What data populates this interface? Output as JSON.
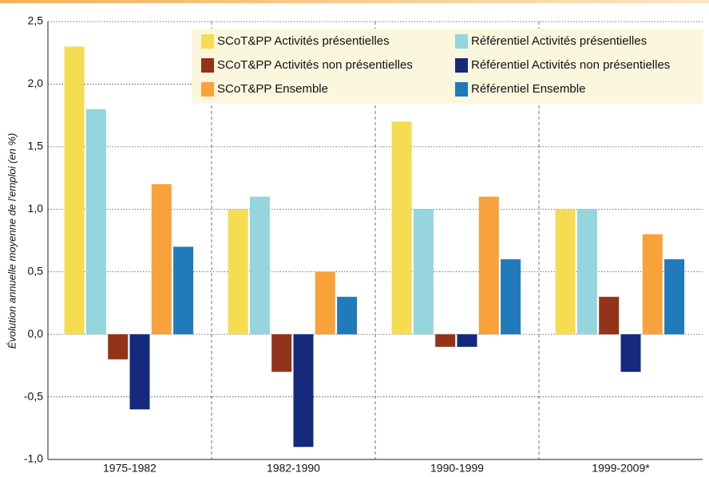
{
  "chart_data": {
    "type": "bar",
    "y_label": "Évolution annuelle moyenne de l'emploi (en %)",
    "categories": [
      "1975-1982",
      "1982-1990",
      "1990-1999",
      "1999-2009*"
    ],
    "series": [
      {
        "name": "SCoT&PP Activités présentielles",
        "color": "#f5dc50",
        "values": [
          2.3,
          1.0,
          1.7,
          1.0
        ]
      },
      {
        "name": "Référentiel Activités présentielles",
        "color": "#95d5dd",
        "values": [
          1.8,
          1.1,
          1.0,
          1.0
        ]
      },
      {
        "name": "SCoT&PP Activités non présentielles",
        "color": "#933319",
        "values": [
          -0.2,
          -0.3,
          -0.1,
          0.3
        ]
      },
      {
        "name": "Référentiel Activités non présentielles",
        "color": "#152a7c",
        "values": [
          -0.6,
          -0.9,
          -0.1,
          -0.3
        ]
      },
      {
        "name": "SCoT&PP Ensemble",
        "color": "#f9a13a",
        "values": [
          1.2,
          0.5,
          1.1,
          0.8
        ]
      },
      {
        "name": "Référentiel Ensemble",
        "color": "#217ab9",
        "values": [
          0.7,
          0.3,
          0.6,
          0.6
        ]
      }
    ],
    "ylim": [
      -1.0,
      2.5
    ],
    "yticks": [
      {
        "value": -1.0,
        "label": "-1,0"
      },
      {
        "value": -0.5,
        "label": "-0,5"
      },
      {
        "value": 0.0,
        "label": "0,0"
      },
      {
        "value": 0.5,
        "label": "0,5"
      },
      {
        "value": 1.0,
        "label": "1,0"
      },
      {
        "value": 1.5,
        "label": "1,5"
      },
      {
        "value": 2.0,
        "label": "2,0"
      },
      {
        "value": 2.5,
        "label": "2,5"
      }
    ],
    "grid": true
  }
}
